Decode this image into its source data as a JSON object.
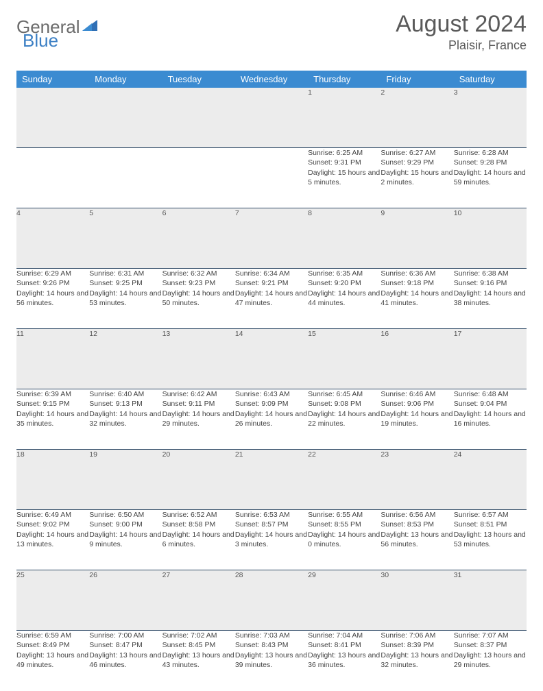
{
  "brand": {
    "part1": "General",
    "part2": "Blue"
  },
  "title": "August 2024",
  "location": "Plaisir, France",
  "accent_color": "#3b8bd1",
  "divider_color": "#2f4a66",
  "gray_row_color": "#ececec",
  "text_color": "#444444",
  "weekdays": [
    "Sunday",
    "Monday",
    "Tuesday",
    "Wednesday",
    "Thursday",
    "Friday",
    "Saturday"
  ],
  "weeks": [
    {
      "nums": [
        "",
        "",
        "",
        "",
        "1",
        "2",
        "3"
      ],
      "info": [
        {
          "sunrise": "",
          "sunset": "",
          "daylight": ""
        },
        {
          "sunrise": "",
          "sunset": "",
          "daylight": ""
        },
        {
          "sunrise": "",
          "sunset": "",
          "daylight": ""
        },
        {
          "sunrise": "",
          "sunset": "",
          "daylight": ""
        },
        {
          "sunrise": "Sunrise: 6:25 AM",
          "sunset": "Sunset: 9:31 PM",
          "daylight": "Daylight: 15 hours and 5 minutes."
        },
        {
          "sunrise": "Sunrise: 6:27 AM",
          "sunset": "Sunset: 9:29 PM",
          "daylight": "Daylight: 15 hours and 2 minutes."
        },
        {
          "sunrise": "Sunrise: 6:28 AM",
          "sunset": "Sunset: 9:28 PM",
          "daylight": "Daylight: 14 hours and 59 minutes."
        }
      ]
    },
    {
      "nums": [
        "4",
        "5",
        "6",
        "7",
        "8",
        "9",
        "10"
      ],
      "info": [
        {
          "sunrise": "Sunrise: 6:29 AM",
          "sunset": "Sunset: 9:26 PM",
          "daylight": "Daylight: 14 hours and 56 minutes."
        },
        {
          "sunrise": "Sunrise: 6:31 AM",
          "sunset": "Sunset: 9:25 PM",
          "daylight": "Daylight: 14 hours and 53 minutes."
        },
        {
          "sunrise": "Sunrise: 6:32 AM",
          "sunset": "Sunset: 9:23 PM",
          "daylight": "Daylight: 14 hours and 50 minutes."
        },
        {
          "sunrise": "Sunrise: 6:34 AM",
          "sunset": "Sunset: 9:21 PM",
          "daylight": "Daylight: 14 hours and 47 minutes."
        },
        {
          "sunrise": "Sunrise: 6:35 AM",
          "sunset": "Sunset: 9:20 PM",
          "daylight": "Daylight: 14 hours and 44 minutes."
        },
        {
          "sunrise": "Sunrise: 6:36 AM",
          "sunset": "Sunset: 9:18 PM",
          "daylight": "Daylight: 14 hours and 41 minutes."
        },
        {
          "sunrise": "Sunrise: 6:38 AM",
          "sunset": "Sunset: 9:16 PM",
          "daylight": "Daylight: 14 hours and 38 minutes."
        }
      ]
    },
    {
      "nums": [
        "11",
        "12",
        "13",
        "14",
        "15",
        "16",
        "17"
      ],
      "info": [
        {
          "sunrise": "Sunrise: 6:39 AM",
          "sunset": "Sunset: 9:15 PM",
          "daylight": "Daylight: 14 hours and 35 minutes."
        },
        {
          "sunrise": "Sunrise: 6:40 AM",
          "sunset": "Sunset: 9:13 PM",
          "daylight": "Daylight: 14 hours and 32 minutes."
        },
        {
          "sunrise": "Sunrise: 6:42 AM",
          "sunset": "Sunset: 9:11 PM",
          "daylight": "Daylight: 14 hours and 29 minutes."
        },
        {
          "sunrise": "Sunrise: 6:43 AM",
          "sunset": "Sunset: 9:09 PM",
          "daylight": "Daylight: 14 hours and 26 minutes."
        },
        {
          "sunrise": "Sunrise: 6:45 AM",
          "sunset": "Sunset: 9:08 PM",
          "daylight": "Daylight: 14 hours and 22 minutes."
        },
        {
          "sunrise": "Sunrise: 6:46 AM",
          "sunset": "Sunset: 9:06 PM",
          "daylight": "Daylight: 14 hours and 19 minutes."
        },
        {
          "sunrise": "Sunrise: 6:48 AM",
          "sunset": "Sunset: 9:04 PM",
          "daylight": "Daylight: 14 hours and 16 minutes."
        }
      ]
    },
    {
      "nums": [
        "18",
        "19",
        "20",
        "21",
        "22",
        "23",
        "24"
      ],
      "info": [
        {
          "sunrise": "Sunrise: 6:49 AM",
          "sunset": "Sunset: 9:02 PM",
          "daylight": "Daylight: 14 hours and 13 minutes."
        },
        {
          "sunrise": "Sunrise: 6:50 AM",
          "sunset": "Sunset: 9:00 PM",
          "daylight": "Daylight: 14 hours and 9 minutes."
        },
        {
          "sunrise": "Sunrise: 6:52 AM",
          "sunset": "Sunset: 8:58 PM",
          "daylight": "Daylight: 14 hours and 6 minutes."
        },
        {
          "sunrise": "Sunrise: 6:53 AM",
          "sunset": "Sunset: 8:57 PM",
          "daylight": "Daylight: 14 hours and 3 minutes."
        },
        {
          "sunrise": "Sunrise: 6:55 AM",
          "sunset": "Sunset: 8:55 PM",
          "daylight": "Daylight: 14 hours and 0 minutes."
        },
        {
          "sunrise": "Sunrise: 6:56 AM",
          "sunset": "Sunset: 8:53 PM",
          "daylight": "Daylight: 13 hours and 56 minutes."
        },
        {
          "sunrise": "Sunrise: 6:57 AM",
          "sunset": "Sunset: 8:51 PM",
          "daylight": "Daylight: 13 hours and 53 minutes."
        }
      ]
    },
    {
      "nums": [
        "25",
        "26",
        "27",
        "28",
        "29",
        "30",
        "31"
      ],
      "info": [
        {
          "sunrise": "Sunrise: 6:59 AM",
          "sunset": "Sunset: 8:49 PM",
          "daylight": "Daylight: 13 hours and 49 minutes."
        },
        {
          "sunrise": "Sunrise: 7:00 AM",
          "sunset": "Sunset: 8:47 PM",
          "daylight": "Daylight: 13 hours and 46 minutes."
        },
        {
          "sunrise": "Sunrise: 7:02 AM",
          "sunset": "Sunset: 8:45 PM",
          "daylight": "Daylight: 13 hours and 43 minutes."
        },
        {
          "sunrise": "Sunrise: 7:03 AM",
          "sunset": "Sunset: 8:43 PM",
          "daylight": "Daylight: 13 hours and 39 minutes."
        },
        {
          "sunrise": "Sunrise: 7:04 AM",
          "sunset": "Sunset: 8:41 PM",
          "daylight": "Daylight: 13 hours and 36 minutes."
        },
        {
          "sunrise": "Sunrise: 7:06 AM",
          "sunset": "Sunset: 8:39 PM",
          "daylight": "Daylight: 13 hours and 32 minutes."
        },
        {
          "sunrise": "Sunrise: 7:07 AM",
          "sunset": "Sunset: 8:37 PM",
          "daylight": "Daylight: 13 hours and 29 minutes."
        }
      ]
    }
  ]
}
